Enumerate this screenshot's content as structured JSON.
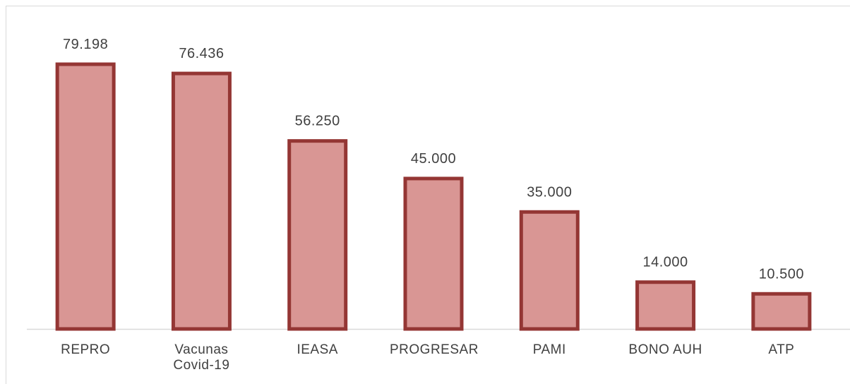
{
  "chart_data": {
    "type": "bar",
    "categories": [
      "REPRO",
      "Vacunas Covid-19",
      "IEASA",
      "PROGRESAR",
      "PAMI",
      "BONO AUH",
      "ATP"
    ],
    "values": [
      79198,
      76436,
      56250,
      45000,
      35000,
      14000,
      10500
    ],
    "value_labels": [
      "79.198",
      "76.436",
      "56.250",
      "45.000",
      "35.000",
      "14.000",
      "10.500"
    ],
    "color": "#d99694",
    "edge_color": "#943634"
  }
}
